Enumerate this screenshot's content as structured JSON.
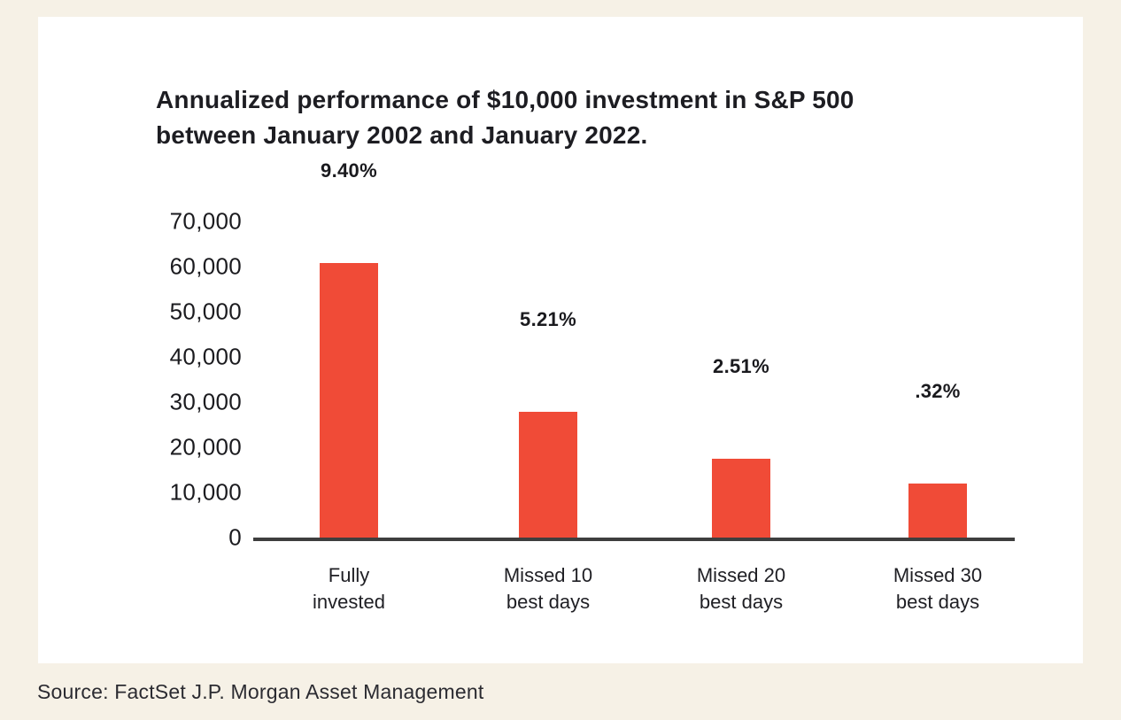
{
  "page": {
    "title_display": "Annualized performance of $10,000 investment in S&P 500\nbetween January 2002 and January 2022.",
    "source": "Source: FactSet J.P. Morgan Asset Management"
  },
  "chart_data": {
    "type": "bar",
    "title": "Annualized performance of $10,000 investment in S&P 500 between January 2002 and January 2022.",
    "categories": [
      "Fully\ninvested",
      "Missed 10\nbest days",
      "Missed 20\nbest days",
      "Missed 30\nbest days"
    ],
    "values": [
      60800,
      27900,
      17400,
      11900
    ],
    "bar_labels": [
      "9.40%",
      "5.21%",
      "2.51%",
      ".32%"
    ],
    "xlabel": "",
    "ylabel": "",
    "ylim": [
      0,
      70000
    ],
    "yticks": [
      0,
      10000,
      20000,
      30000,
      40000,
      50000,
      60000,
      70000
    ],
    "ytick_labels": [
      "0",
      "10,000",
      "20,000",
      "30,000",
      "40,000",
      "50,000",
      "60,000",
      "70,000"
    ],
    "grid": false,
    "legend": false,
    "bar_color": "#F04B37",
    "axis_color": "#3E3E3E",
    "source": "Source: FactSet J.P. Morgan Asset Management"
  }
}
